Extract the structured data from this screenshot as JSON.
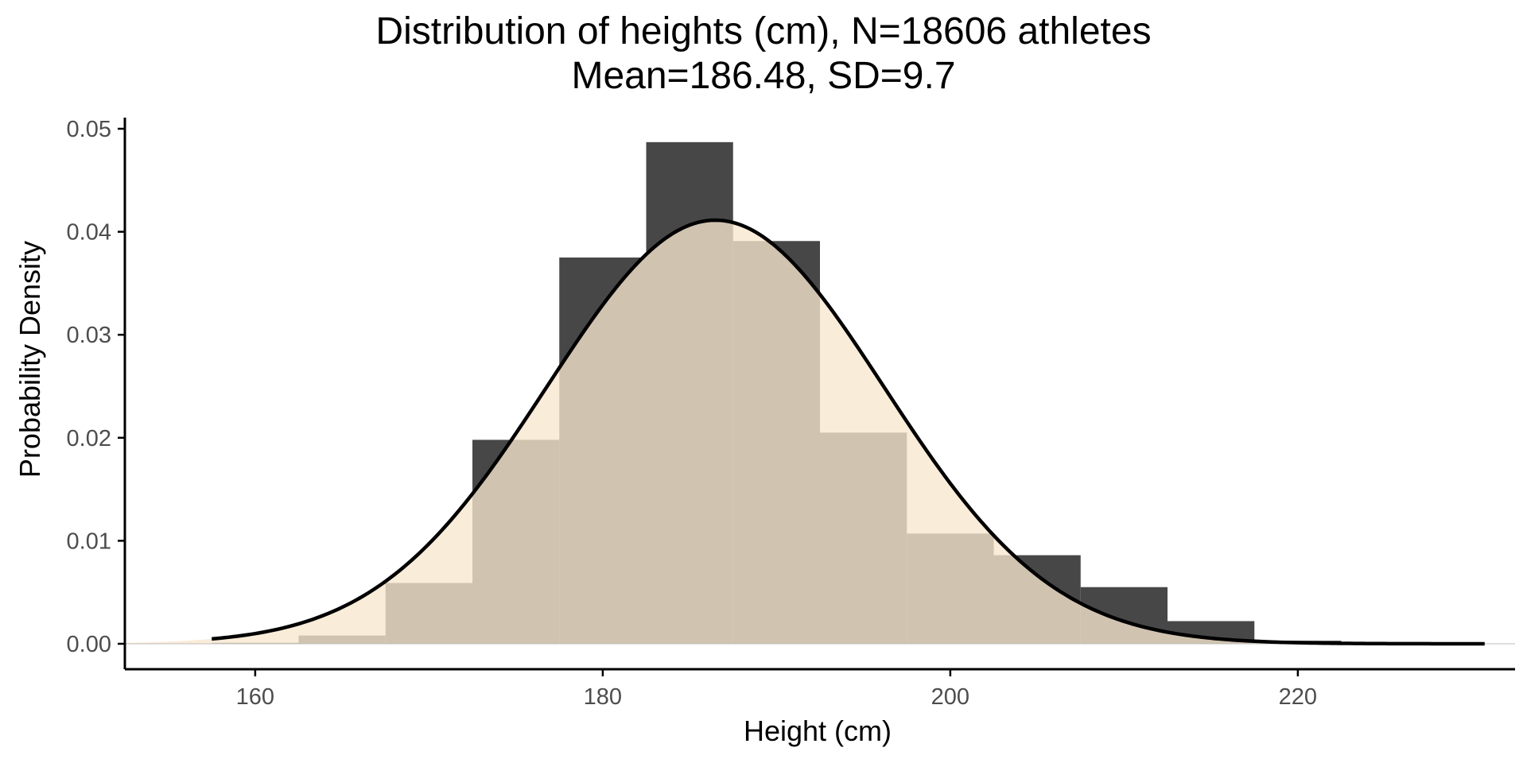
{
  "chart_data": {
    "type": "bar",
    "title": "Distribution of heights (cm), N=18606 athletes",
    "subtitle": "Mean=186.48, SD=9.7",
    "xlabel": "Height (cm)",
    "ylabel": "Probability Density",
    "xlim": [
      152.5,
      232.5
    ],
    "ylim": [
      0,
      0.05
    ],
    "x_ticks": [
      160,
      180,
      200,
      220
    ],
    "y_ticks": [
      "0.00",
      "0.01",
      "0.02",
      "0.03",
      "0.04",
      "0.05"
    ],
    "grid": false,
    "legend": "none",
    "histogram": {
      "bin_width": 5,
      "bin_starts": [
        157.5,
        162.5,
        167.5,
        172.5,
        177.5,
        182.5,
        187.5,
        192.5,
        197.5,
        202.5,
        207.5,
        212.5,
        217.5,
        222.5,
        227.5
      ],
      "density": [
        0.0001,
        0.0008,
        0.0059,
        0.0198,
        0.0375,
        0.0487,
        0.0391,
        0.0205,
        0.0107,
        0.0086,
        0.0055,
        0.0022,
        0.0003,
        0.0001,
        0.0
      ]
    },
    "normal_curve": {
      "mean": 186.48,
      "sd": 9.7,
      "x_range": [
        157.5,
        230.8
      ],
      "fill_range": [
        152.5,
        232.5
      ]
    },
    "colors": {
      "bars": "#474747",
      "curve_fill": "#f7e7ce",
      "overlap": "#655640",
      "curve_line": "#000000",
      "axis": "#000000",
      "tick_text": "#4d4d4d"
    }
  }
}
